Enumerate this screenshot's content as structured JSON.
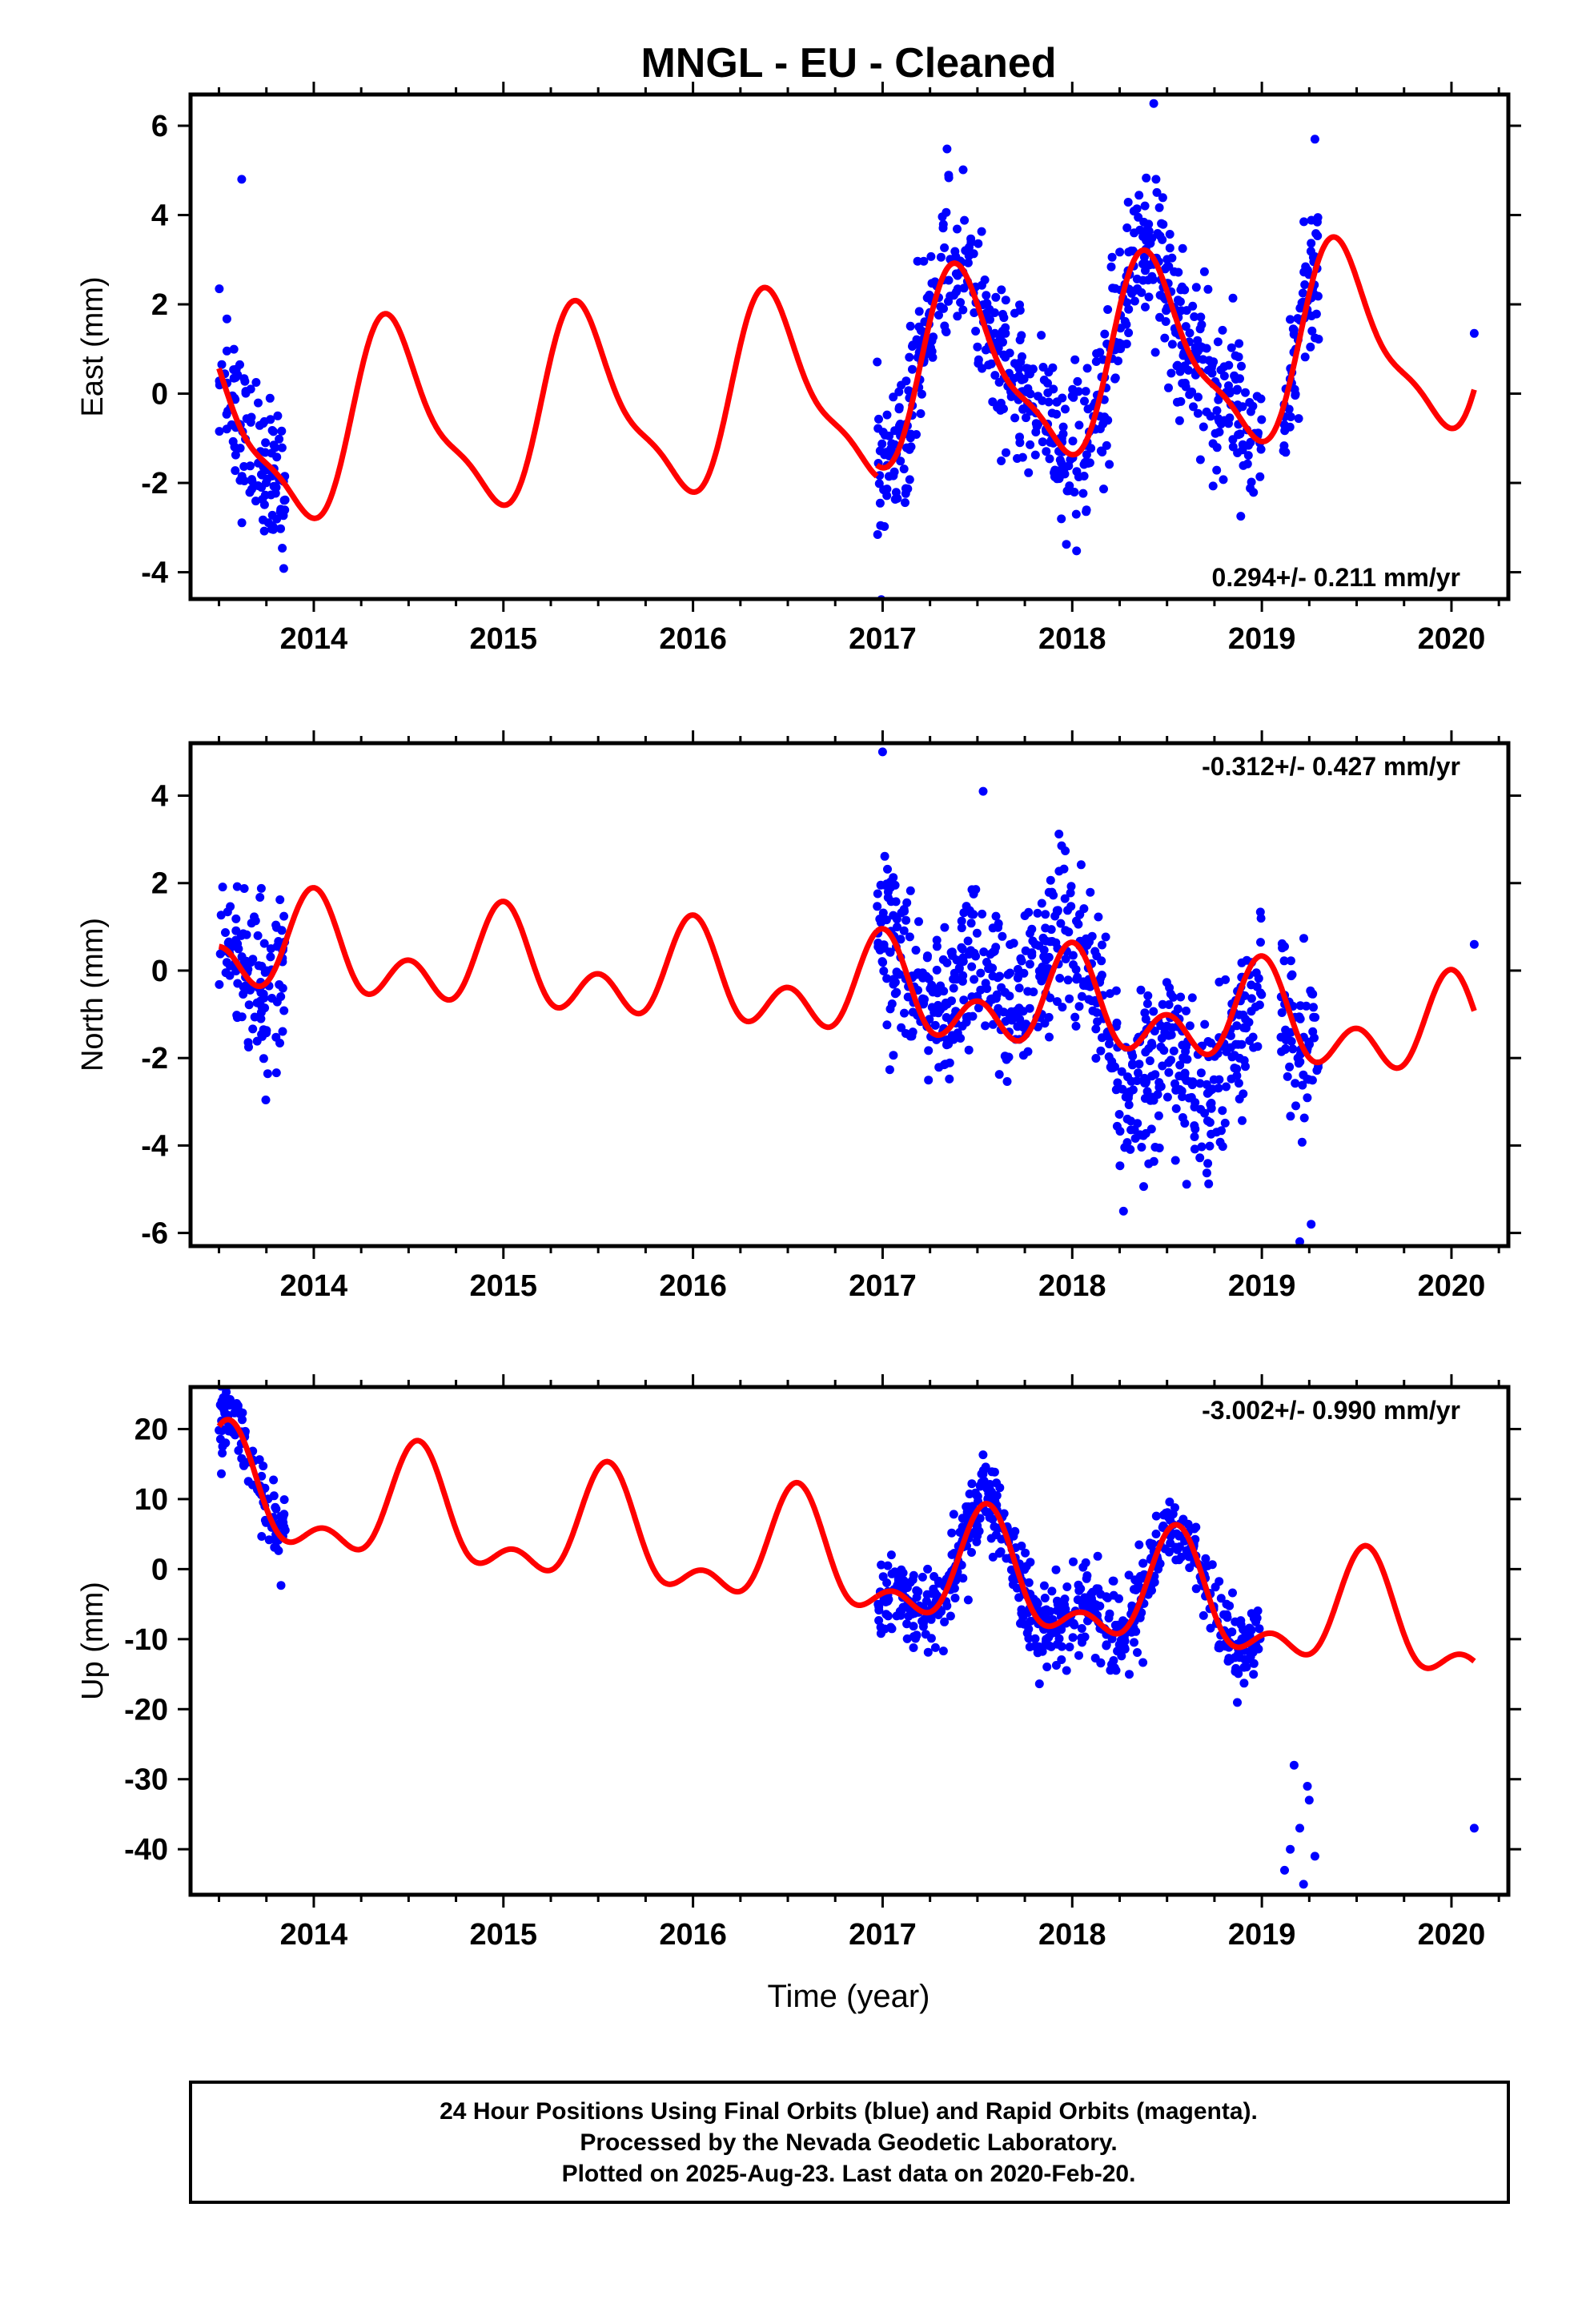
{
  "title": "MNGL  - EU - Cleaned",
  "xlabel": "Time (year)",
  "footer": {
    "lines": [
      "24 Hour Positions Using Final Orbits (blue) and Rapid Orbits (magenta).",
      "Processed by the Nevada Geodetic Laboratory.",
      "Plotted on 2025-Aug-23. Last data on 2020-Feb-20."
    ]
  },
  "colors": {
    "points": "#0000ff",
    "model": "#ff0000",
    "frame": "#000000"
  },
  "chart_data": [
    {
      "type": "scatter",
      "component": "east",
      "ylabel": "East (mm)",
      "rate_text": "0.294+/- 0.211 mm/yr",
      "rate_position": "bottom-right",
      "xlim": [
        2013.35,
        2020.3
      ],
      "ylim": [
        -4.6,
        6.7
      ],
      "xticks": [
        2014,
        2015,
        2016,
        2017,
        2018,
        2019,
        2020
      ],
      "yticks": [
        -4,
        -2,
        0,
        2,
        4,
        6
      ],
      "model": {
        "rate": 0.294,
        "a1": 2.0,
        "phase1_year": 0.42,
        "a2": 0.6,
        "phase2_year": 0.34,
        "offset": -0.05,
        "t0": 2016.5,
        "segments": [
          [
            2013.5,
            2016.97
          ],
          [
            2016.97,
            2020.12
          ]
        ],
        "segment_offsets": [
          0.0,
          0.25
        ]
      },
      "observations": {
        "spans": [
          [
            2013.5,
            2013.85
          ],
          [
            2016.97,
            2019.0
          ],
          [
            2019.1,
            2019.3
          ]
        ],
        "scatter_sd": 1.0,
        "isolated": [
          [
            2020.12,
            1.35
          ],
          [
            2013.62,
            4.8
          ],
          [
            2018.43,
            6.5
          ],
          [
            2019.28,
            5.7
          ]
        ]
      }
    },
    {
      "type": "scatter",
      "component": "north",
      "ylabel": "North (mm)",
      "rate_text": "-0.312+/- 0.427 mm/yr",
      "rate_position": "top-right",
      "xlim": [
        2013.35,
        2020.3
      ],
      "ylim": [
        -6.3,
        5.2
      ],
      "xticks": [
        2014,
        2015,
        2016,
        2017,
        2018,
        2019,
        2020
      ],
      "yticks": [
        -6,
        -4,
        -2,
        0,
        2,
        4
      ],
      "model": {
        "rate": -0.312,
        "a1": 0.75,
        "phase1_year": 0.0,
        "a2": 0.75,
        "phase2_year": 0.0,
        "offset": 0.55,
        "t0": 2013.5,
        "segments": [
          [
            2013.5,
            2016.97
          ],
          [
            2016.97,
            2020.12
          ]
        ],
        "segment_offsets": [
          0.0,
          0.0
        ]
      },
      "observations": {
        "spans": [
          [
            2013.5,
            2013.85
          ],
          [
            2016.97,
            2019.0
          ],
          [
            2019.1,
            2019.3
          ]
        ],
        "scatter_sd": 1.1,
        "isolated": [
          [
            2020.12,
            0.6
          ],
          [
            2017.0,
            5.0
          ],
          [
            2017.53,
            4.1
          ],
          [
            2019.2,
            -6.2
          ],
          [
            2019.26,
            -5.8
          ]
        ]
      }
    },
    {
      "type": "scatter",
      "component": "up",
      "ylabel": "Up (mm)",
      "rate_text": "-3.002+/- 0.990 mm/yr",
      "rate_position": "top-right",
      "xlim": [
        2013.35,
        2020.3
      ],
      "ylim": [
        -46.5,
        26
      ],
      "xticks": [
        2014,
        2015,
        2016,
        2017,
        2018,
        2019,
        2020
      ],
      "yticks": [
        -40,
        -30,
        -20,
        -10,
        0,
        10,
        20
      ],
      "model": {
        "rate": -3.002,
        "a1": 7.0,
        "phase1_year": 0.55,
        "a2": 4.0,
        "phase2_year": 0.55,
        "offset": 10.5,
        "t0": 2013.5,
        "segments": [
          [
            2013.5,
            2016.97
          ],
          [
            2016.97,
            2020.12
          ]
        ],
        "segment_offsets": [
          0.0,
          0.0
        ]
      },
      "observations": {
        "spans": [
          [
            2013.5,
            2013.85
          ],
          [
            2016.97,
            2019.0
          ]
        ],
        "scatter_sd": 3.5,
        "isolated": [
          [
            2020.12,
            -37.0
          ],
          [
            2019.12,
            -43
          ],
          [
            2019.17,
            -28
          ],
          [
            2019.2,
            -37
          ],
          [
            2019.22,
            -45
          ],
          [
            2019.25,
            -33
          ],
          [
            2019.28,
            -41
          ],
          [
            2019.15,
            -40
          ],
          [
            2019.24,
            -31
          ]
        ]
      }
    }
  ]
}
